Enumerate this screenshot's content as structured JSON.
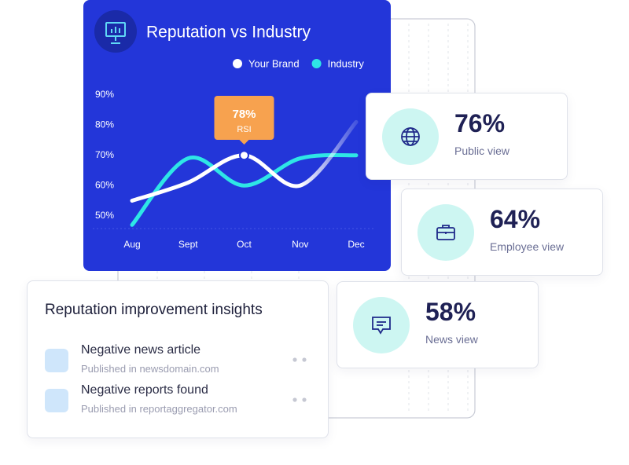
{
  "chart_data": {
    "type": "line",
    "title": "Reputation vs Industry",
    "categories": [
      "Aug",
      "Sept",
      "Oct",
      "Nov",
      "Dec"
    ],
    "series": [
      {
        "name": "Your Brand",
        "color": "#ffffff",
        "values": [
          55,
          61,
          70,
          60,
          81
        ]
      },
      {
        "name": "Industry",
        "color": "#2ee6e6",
        "values": [
          47,
          69,
          60,
          69,
          70
        ]
      }
    ],
    "ylim": [
      45,
      92
    ],
    "yticks": [
      {
        "value": 50,
        "label": "50%"
      },
      {
        "value": 60,
        "label": "60%"
      },
      {
        "value": 70,
        "label": "70%"
      },
      {
        "value": 80,
        "label": "80%"
      },
      {
        "value": 90,
        "label": "90%"
      }
    ],
    "annotation": {
      "value": "78%",
      "label": "RSI"
    }
  },
  "stats": [
    {
      "value": "76%",
      "label": "Public view"
    },
    {
      "value": "64%",
      "label": "Employee view"
    },
    {
      "value": "58%",
      "label": "News view"
    }
  ],
  "insights": {
    "title": "Reputation improvement insights",
    "items": [
      {
        "title": "Negative news article",
        "source": "Published  in newsdomain.com"
      },
      {
        "title": "Negative reports found",
        "source": "Published  in reportaggregator.com"
      }
    ]
  }
}
